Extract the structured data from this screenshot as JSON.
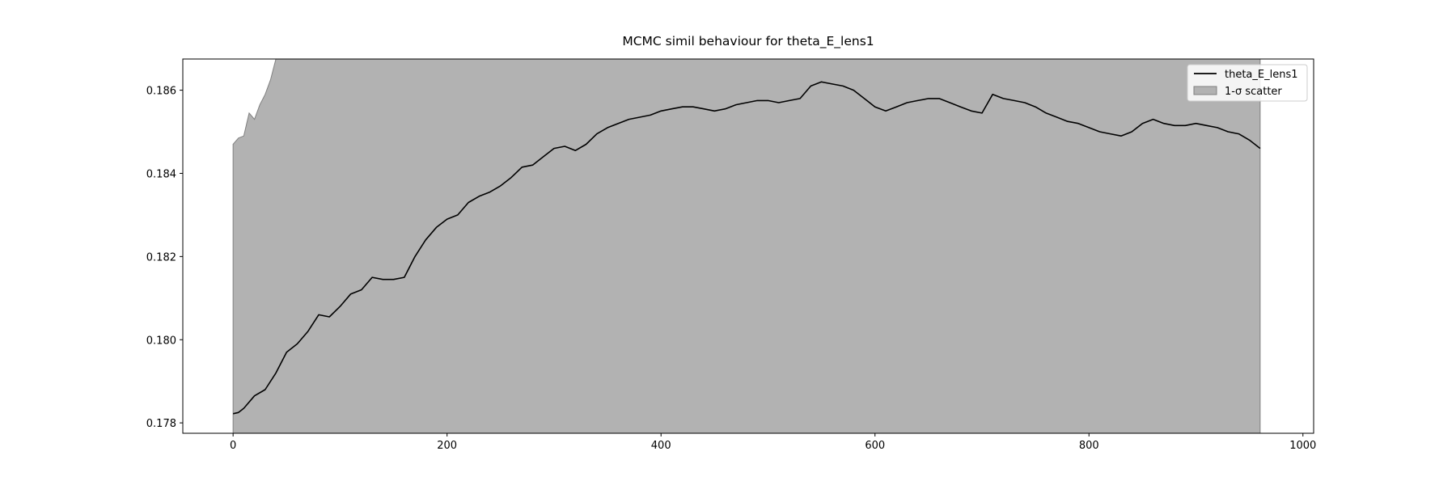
{
  "chart_data": {
    "type": "line",
    "title": "MCMC simil behaviour for theta_E_lens1",
    "xlabel": "",
    "ylabel": "",
    "xlim": [
      -47,
      1010
    ],
    "ylim": [
      0.17775,
      0.18675
    ],
    "xticks": [
      0,
      200,
      400,
      600,
      800,
      1000
    ],
    "yticks": [
      0.178,
      0.18,
      0.182,
      0.184,
      0.186
    ],
    "xtick_labels": [
      "0",
      "200",
      "400",
      "600",
      "800",
      "1000"
    ],
    "ytick_labels": [
      "0.178",
      "0.180",
      "0.182",
      "0.184",
      "0.186"
    ],
    "grid": false,
    "legend_position": "top-right",
    "series": [
      {
        "name": "theta_E_lens1",
        "kind": "line",
        "color": "#000000",
        "x": [
          0,
          5,
          10,
          20,
          30,
          40,
          50,
          60,
          70,
          80,
          90,
          100,
          110,
          120,
          130,
          140,
          150,
          160,
          170,
          180,
          190,
          200,
          210,
          220,
          230,
          240,
          250,
          260,
          270,
          280,
          290,
          300,
          310,
          320,
          330,
          340,
          350,
          360,
          370,
          380,
          390,
          400,
          410,
          420,
          430,
          440,
          450,
          460,
          470,
          480,
          490,
          500,
          510,
          520,
          530,
          540,
          550,
          560,
          570,
          580,
          590,
          600,
          610,
          620,
          630,
          640,
          650,
          660,
          670,
          680,
          690,
          700,
          710,
          720,
          730,
          740,
          750,
          760,
          770,
          780,
          790,
          800,
          810,
          820,
          830,
          840,
          850,
          860,
          870,
          880,
          890,
          900,
          910,
          920,
          930,
          940,
          950,
          960
        ],
        "y": [
          0.17822,
          0.17825,
          0.17835,
          0.17865,
          0.1788,
          0.1792,
          0.1797,
          0.1799,
          0.1802,
          0.1806,
          0.18055,
          0.1808,
          0.1811,
          0.1812,
          0.1815,
          0.18145,
          0.18145,
          0.1815,
          0.182,
          0.1824,
          0.1827,
          0.1829,
          0.183,
          0.1833,
          0.18345,
          0.18355,
          0.1837,
          0.1839,
          0.18415,
          0.1842,
          0.1844,
          0.1846,
          0.18465,
          0.18455,
          0.1847,
          0.18495,
          0.1851,
          0.1852,
          0.1853,
          0.18535,
          0.1854,
          0.1855,
          0.18555,
          0.1856,
          0.1856,
          0.18555,
          0.1855,
          0.18555,
          0.18565,
          0.1857,
          0.18575,
          0.18575,
          0.1857,
          0.18575,
          0.1858,
          0.1861,
          0.1862,
          0.18615,
          0.1861,
          0.186,
          0.1858,
          0.1856,
          0.1855,
          0.1856,
          0.1857,
          0.18575,
          0.1858,
          0.1858,
          0.1857,
          0.1856,
          0.1855,
          0.18545,
          0.1859,
          0.1858,
          0.18575,
          0.1857,
          0.1856,
          0.18545,
          0.18535,
          0.18525,
          0.1852,
          0.1851,
          0.185,
          0.18495,
          0.1849,
          0.185,
          0.1852,
          0.1853,
          0.1852,
          0.18515,
          0.18515,
          0.1852,
          0.18515,
          0.1851,
          0.185,
          0.18495,
          0.1848,
          0.1846
        ]
      },
      {
        "name": "1-σ scatter",
        "kind": "band",
        "color": "#b2b2b2",
        "edge_color": "#808080",
        "x": [
          0,
          5,
          10,
          15,
          20,
          25,
          30,
          35,
          40,
          960
        ],
        "lower_clipped_below_axis": true,
        "upper": [
          0.1847,
          0.18485,
          0.1849,
          0.18545,
          0.1853,
          0.18565,
          0.1859,
          0.18625,
          0.18675,
          0.18675
        ]
      }
    ]
  }
}
